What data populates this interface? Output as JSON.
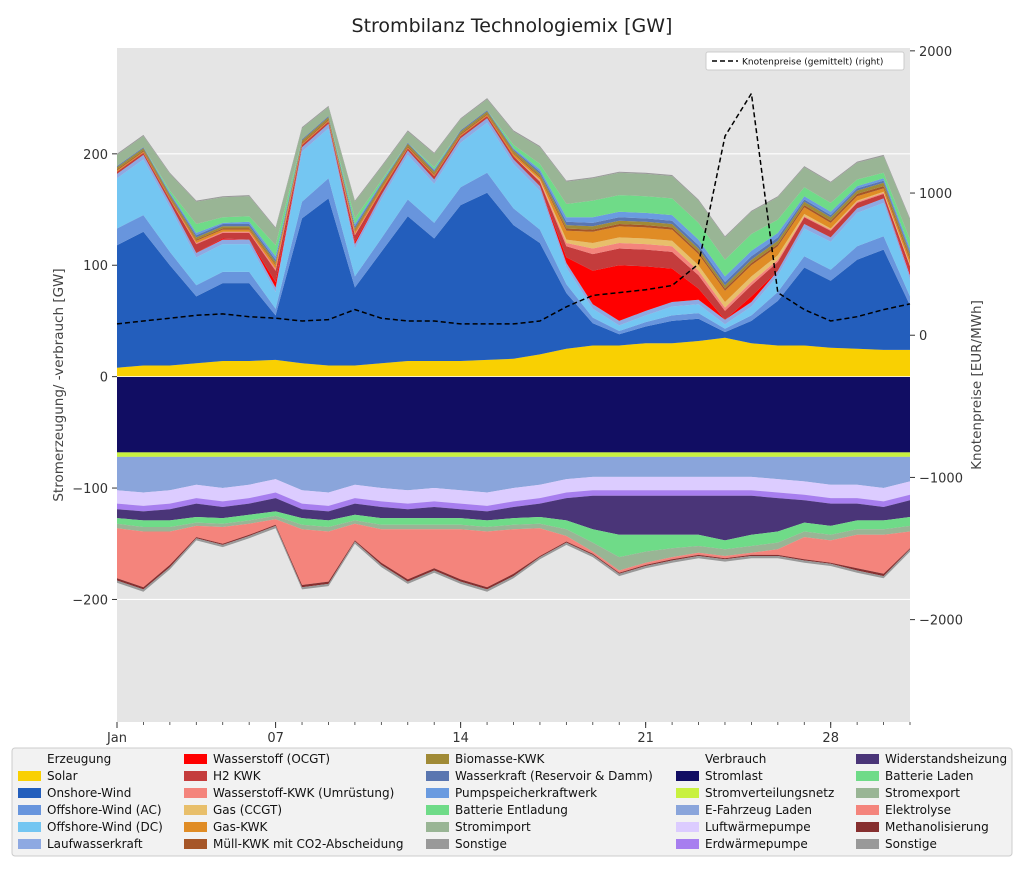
{
  "chart_data": {
    "type": "area",
    "title": "Strombilanz Technologiemix [GW]",
    "ylabel": "Stromerzeugung/ -verbrauch [GW]",
    "y2label": "Knotenpreise [EUR/MWh]",
    "ylim": [
      -310,
      295
    ],
    "y2lim": [
      -2720,
      2020
    ],
    "x_ticks": [
      "Jan",
      "07",
      "14",
      "21",
      "28"
    ],
    "x_range_days": [
      1,
      31
    ],
    "y_ticks": [
      200,
      100,
      0,
      -100,
      -200
    ],
    "y_tick_labels": [
      "200",
      "100",
      "0",
      "−100",
      "−200"
    ],
    "y2_ticks": [
      2000,
      1000,
      0,
      -1000,
      -2000
    ],
    "y2_tick_labels": [
      "2000",
      "1000",
      "0",
      "−1000",
      "−2000"
    ],
    "grid": true,
    "legend_placement": "top-right",
    "line_legend": "Knotenpreise (gemittelt) (right)",
    "x_day": [
      1,
      2,
      3,
      4,
      5,
      6,
      7,
      8,
      9,
      10,
      11,
      12,
      13,
      14,
      15,
      16,
      17,
      18,
      19,
      20,
      21,
      22,
      23,
      24,
      25,
      26,
      27,
      28,
      29,
      30,
      31
    ],
    "generation": [
      {
        "name": "Solar",
        "color": "#f9d002",
        "values": [
          8,
          10,
          10,
          12,
          14,
          14,
          15,
          12,
          10,
          10,
          12,
          14,
          14,
          14,
          15,
          16,
          20,
          25,
          28,
          28,
          30,
          30,
          32,
          35,
          30,
          28,
          28,
          26,
          25,
          24,
          24
        ]
      },
      {
        "name": "Onshore-Wind",
        "color": "#235ebc",
        "values": [
          110,
          120,
          90,
          60,
          70,
          70,
          40,
          130,
          150,
          70,
          100,
          130,
          110,
          140,
          150,
          120,
          100,
          50,
          20,
          10,
          15,
          20,
          20,
          5,
          20,
          40,
          70,
          60,
          80,
          90,
          40
        ]
      },
      {
        "name": "Offshore-Wind (AC)",
        "color": "#6895dd",
        "values": [
          15,
          15,
          12,
          10,
          10,
          10,
          6,
          15,
          18,
          10,
          12,
          15,
          14,
          16,
          18,
          15,
          12,
          8,
          5,
          3,
          4,
          5,
          5,
          3,
          5,
          8,
          10,
          10,
          12,
          12,
          8
        ]
      },
      {
        "name": "Offshore-Wind (DC)",
        "color": "#74c6f2",
        "values": [
          45,
          50,
          40,
          25,
          25,
          25,
          15,
          45,
          45,
          25,
          35,
          40,
          35,
          40,
          45,
          40,
          35,
          15,
          8,
          5,
          6,
          8,
          8,
          4,
          8,
          15,
          25,
          25,
          30,
          30,
          15
        ]
      },
      {
        "name": "Laufwasserkraft",
        "color": "#8ea9e2",
        "values": [
          4,
          4,
          4,
          4,
          4,
          4,
          4,
          4,
          4,
          4,
          4,
          4,
          4,
          4,
          4,
          4,
          4,
          4,
          4,
          4,
          4,
          4,
          4,
          4,
          4,
          4,
          4,
          4,
          4,
          4,
          4
        ]
      },
      {
        "name": "Wasserstoff (OCGT)",
        "color": "#ff0000",
        "values": [
          0,
          0,
          0,
          0,
          1,
          0,
          5,
          0,
          0,
          2,
          0,
          0,
          0,
          0,
          0,
          0,
          0,
          5,
          30,
          50,
          40,
          30,
          10,
          0,
          5,
          0,
          0,
          0,
          0,
          0,
          2
        ]
      },
      {
        "name": "H2 KWK",
        "color": "#c43c3c",
        "values": [
          2,
          2,
          3,
          8,
          5,
          6,
          10,
          2,
          2,
          6,
          4,
          2,
          3,
          2,
          2,
          3,
          4,
          10,
          15,
          15,
          15,
          15,
          12,
          8,
          10,
          8,
          6,
          6,
          5,
          4,
          6
        ]
      },
      {
        "name": "Wasserstoff-KWK (Umrüstung)",
        "color": "#f4847c",
        "values": [
          0,
          0,
          0,
          1,
          1,
          1,
          2,
          0,
          0,
          1,
          0,
          0,
          0,
          0,
          0,
          0,
          1,
          3,
          5,
          5,
          5,
          5,
          4,
          3,
          3,
          2,
          1,
          1,
          1,
          1,
          1
        ]
      },
      {
        "name": "Gas (CCGT)",
        "color": "#e8bf6b",
        "values": [
          0,
          0,
          0,
          0,
          0,
          0,
          0,
          0,
          0,
          0,
          0,
          0,
          0,
          0,
          0,
          0,
          1,
          3,
          5,
          5,
          5,
          5,
          5,
          5,
          5,
          4,
          2,
          1,
          1,
          1,
          1
        ]
      },
      {
        "name": "Gas-KWK",
        "color": "#e08c25",
        "values": [
          1,
          1,
          1,
          2,
          2,
          2,
          3,
          1,
          1,
          2,
          2,
          1,
          1,
          1,
          1,
          2,
          2,
          8,
          10,
          10,
          10,
          10,
          10,
          10,
          10,
          8,
          6,
          5,
          4,
          3,
          4
        ]
      },
      {
        "name": "Müll-KWK mit CO2-Abscheidung",
        "color": "#a65628",
        "values": [
          1,
          1,
          1,
          1,
          1,
          1,
          1,
          1,
          1,
          1,
          1,
          1,
          1,
          1,
          1,
          1,
          1,
          2,
          2,
          2,
          2,
          2,
          2,
          2,
          2,
          2,
          2,
          2,
          2,
          2,
          2
        ]
      },
      {
        "name": "Biomasse-KWK",
        "color": "#a08a36",
        "values": [
          2,
          2,
          2,
          2,
          2,
          2,
          2,
          2,
          2,
          2,
          2,
          2,
          2,
          2,
          2,
          2,
          2,
          3,
          3,
          3,
          3,
          3,
          3,
          3,
          3,
          3,
          3,
          3,
          3,
          3,
          3
        ]
      },
      {
        "name": "Wasserkraft (Reservoir & Damm)",
        "color": "#5a76b0",
        "values": [
          1,
          1,
          1,
          2,
          2,
          2,
          2,
          1,
          1,
          2,
          1,
          1,
          1,
          1,
          1,
          1,
          2,
          3,
          3,
          3,
          3,
          3,
          3,
          3,
          3,
          3,
          2,
          2,
          2,
          2,
          2
        ]
      },
      {
        "name": "Pumpspeicherkraftwerk",
        "color": "#6a9be0",
        "values": [
          0,
          0,
          1,
          2,
          1,
          2,
          3,
          0,
          0,
          2,
          1,
          0,
          1,
          0,
          0,
          1,
          2,
          4,
          5,
          5,
          5,
          5,
          5,
          5,
          5,
          4,
          3,
          3,
          2,
          2,
          3
        ]
      },
      {
        "name": "Batterie Entladung",
        "color": "#6fdb88",
        "values": [
          0,
          0,
          2,
          8,
          5,
          5,
          10,
          0,
          0,
          5,
          2,
          0,
          2,
          0,
          0,
          3,
          5,
          12,
          15,
          15,
          15,
          15,
          15,
          15,
          15,
          12,
          8,
          8,
          6,
          5,
          8
        ]
      },
      {
        "name": "Stromimport",
        "color": "#99b595",
        "values": [
          10,
          10,
          15,
          20,
          18,
          18,
          15,
          10,
          8,
          15,
          12,
          10,
          12,
          10,
          10,
          12,
          15,
          20,
          20,
          20,
          20,
          20,
          20,
          20,
          20,
          20,
          18,
          18,
          15,
          15,
          18
        ]
      },
      {
        "name": "Sonstige",
        "color": "#999999",
        "values": [
          1,
          1,
          1,
          1,
          1,
          1,
          1,
          1,
          1,
          1,
          1,
          1,
          1,
          1,
          1,
          1,
          1,
          1,
          1,
          1,
          1,
          1,
          1,
          1,
          1,
          1,
          1,
          1,
          1,
          1,
          1
        ]
      }
    ],
    "consumption": [
      {
        "name": "Stromlast",
        "color": "#110d63",
        "values": [
          -68,
          -68,
          -68,
          -68,
          -68,
          -68,
          -68,
          -68,
          -68,
          -68,
          -68,
          -68,
          -68,
          -68,
          -68,
          -68,
          -68,
          -68,
          -68,
          -68,
          -68,
          -68,
          -68,
          -68,
          -68,
          -68,
          -68,
          -68,
          -68,
          -68,
          -68
        ]
      },
      {
        "name": "Stromverteilungsnetz",
        "color": "#c8f13f",
        "values": [
          -4,
          -4,
          -4,
          -4,
          -4,
          -4,
          -4,
          -4,
          -4,
          -4,
          -4,
          -4,
          -4,
          -4,
          -4,
          -4,
          -4,
          -4,
          -4,
          -4,
          -4,
          -4,
          -4,
          -4,
          -4,
          -4,
          -4,
          -4,
          -4,
          -4,
          -4
        ]
      },
      {
        "name": "E-Fahrzeug Laden",
        "color": "#8aa5db",
        "values": [
          -30,
          -32,
          -30,
          -25,
          -28,
          -25,
          -20,
          -30,
          -32,
          -25,
          -28,
          -30,
          -28,
          -30,
          -32,
          -28,
          -25,
          -20,
          -18,
          -18,
          -18,
          -18,
          -18,
          -18,
          -18,
          -20,
          -22,
          -25,
          -25,
          -28,
          -22
        ]
      },
      {
        "name": "Luftwärmepumpe",
        "color": "#dcccff",
        "values": [
          -12,
          -12,
          -12,
          -12,
          -12,
          -12,
          -12,
          -12,
          -12,
          -12,
          -12,
          -12,
          -12,
          -12,
          -12,
          -12,
          -12,
          -12,
          -12,
          -12,
          -12,
          -12,
          -12,
          -12,
          -12,
          -12,
          -12,
          -12,
          -12,
          -12,
          -12
        ]
      },
      {
        "name": "Erdwärmepumpe",
        "color": "#a77eef",
        "values": [
          -5,
          -5,
          -5,
          -5,
          -5,
          -5,
          -5,
          -5,
          -5,
          -5,
          -5,
          -5,
          -5,
          -5,
          -5,
          -5,
          -5,
          -5,
          -5,
          -5,
          -5,
          -5,
          -5,
          -5,
          -5,
          -5,
          -5,
          -5,
          -5,
          -5,
          -5
        ]
      },
      {
        "name": "Widerstandsheizung",
        "color": "#4a3578",
        "values": [
          -8,
          -8,
          -10,
          -12,
          -10,
          -10,
          -12,
          -8,
          -8,
          -10,
          -10,
          -8,
          -10,
          -8,
          -8,
          -10,
          -12,
          -20,
          -30,
          -35,
          -35,
          -35,
          -35,
          -40,
          -35,
          -30,
          -20,
          -20,
          -15,
          -12,
          -15
        ]
      },
      {
        "name": "Batterie Laden",
        "color": "#6fdb88",
        "values": [
          -5,
          -6,
          -6,
          -5,
          -5,
          -5,
          -4,
          -6,
          -6,
          -5,
          -6,
          -6,
          -6,
          -6,
          -6,
          -6,
          -6,
          -8,
          -12,
          -20,
          -15,
          -12,
          -10,
          -8,
          -10,
          -10,
          -8,
          -8,
          -8,
          -8,
          -8
        ]
      },
      {
        "name": "Stromexport",
        "color": "#99b595",
        "values": [
          -4,
          -4,
          -4,
          -3,
          -3,
          -3,
          -3,
          -4,
          -4,
          -3,
          -4,
          -4,
          -4,
          -4,
          -4,
          -4,
          -4,
          -6,
          -8,
          -12,
          -10,
          -8,
          -6,
          -6,
          -6,
          -6,
          -5,
          -5,
          -5,
          -5,
          -5
        ]
      },
      {
        "name": "Elektrolyse",
        "color": "#f4847c",
        "values": [
          -45,
          -50,
          -30,
          -10,
          -15,
          -10,
          -5,
          -50,
          -45,
          -15,
          -30,
          -45,
          -35,
          -45,
          -50,
          -40,
          -25,
          -5,
          -2,
          -2,
          -2,
          -2,
          -2,
          -2,
          -2,
          -5,
          -20,
          -20,
          -30,
          -35,
          -15
        ]
      },
      {
        "name": "Methanolisierung",
        "color": "#862f2f",
        "values": [
          -2,
          -2,
          -2,
          -1,
          -1,
          -1,
          -1,
          -2,
          -2,
          -1,
          -2,
          -2,
          -2,
          -2,
          -2,
          -2,
          -1,
          -1,
          -1,
          -1,
          -1,
          -1,
          -1,
          -1,
          -1,
          -1,
          -1,
          -1,
          -2,
          -2,
          -1
        ]
      },
      {
        "name": "Sonstige",
        "color": "#999999",
        "values": [
          -2,
          -2,
          -2,
          -2,
          -2,
          -2,
          -2,
          -2,
          -2,
          -2,
          -2,
          -2,
          -2,
          -2,
          -2,
          -2,
          -2,
          -2,
          -2,
          -2,
          -2,
          -2,
          -2,
          -2,
          -2,
          -2,
          -2,
          -2,
          -2,
          -2,
          -2
        ]
      }
    ],
    "price_series": {
      "name": "Knotenpreise (gemittelt) (right)",
      "color": "#000000",
      "values": [
        80,
        100,
        120,
        140,
        150,
        130,
        120,
        100,
        110,
        180,
        120,
        100,
        100,
        80,
        80,
        80,
        100,
        200,
        280,
        300,
        320,
        350,
        500,
        1400,
        1700,
        300,
        180,
        100,
        130,
        180,
        220
      ]
    }
  },
  "legend": {
    "columns": [
      [
        {
          "type": "header",
          "label": "Erzeugung"
        },
        {
          "label": "Solar",
          "color": "#f9d002"
        },
        {
          "label": "Onshore-Wind",
          "color": "#235ebc"
        },
        {
          "label": "Offshore-Wind (AC)",
          "color": "#6895dd"
        },
        {
          "label": "Offshore-Wind (DC)",
          "color": "#74c6f2"
        },
        {
          "label": "Laufwasserkraft",
          "color": "#8ea9e2"
        }
      ],
      [
        {
          "label": "Wasserstoff (OCGT)",
          "color": "#ff0000"
        },
        {
          "label": "H2 KWK",
          "color": "#c43c3c"
        },
        {
          "label": "Wasserstoff-KWK (Umrüstung)",
          "color": "#f4847c"
        },
        {
          "label": "Gas (CCGT)",
          "color": "#e8bf6b"
        },
        {
          "label": "Gas-KWK",
          "color": "#e08c25"
        },
        {
          "label": "Müll-KWK mit CO2-Abscheidung",
          "color": "#a65628"
        }
      ],
      [
        {
          "label": "Biomasse-KWK",
          "color": "#a08a36"
        },
        {
          "label": "Wasserkraft (Reservoir & Damm)",
          "color": "#5a76b0"
        },
        {
          "label": "Pumpspeicherkraftwerk",
          "color": "#6a9be0"
        },
        {
          "label": "Batterie Entladung",
          "color": "#6fdb88"
        },
        {
          "label": "Stromimport",
          "color": "#99b595"
        },
        {
          "label": "Sonstige",
          "color": "#999999"
        }
      ],
      [
        {
          "type": "header",
          "label": "Verbrauch"
        },
        {
          "label": "Stromlast",
          "color": "#110d63"
        },
        {
          "label": "Stromverteilungsnetz",
          "color": "#c8f13f"
        },
        {
          "label": "E-Fahrzeug Laden",
          "color": "#8aa5db"
        },
        {
          "label": "Luftwärmepumpe",
          "color": "#dcccff"
        },
        {
          "label": "Erdwärmepumpe",
          "color": "#a77eef"
        }
      ],
      [
        {
          "label": "Widerstandsheizung",
          "color": "#4a3578"
        },
        {
          "label": "Batterie Laden",
          "color": "#6fdb88"
        },
        {
          "label": "Stromexport",
          "color": "#99b595"
        },
        {
          "label": "Elektrolyse",
          "color": "#f4847c"
        },
        {
          "label": "Methanolisierung",
          "color": "#862f2f"
        },
        {
          "label": "Sonstige",
          "color": "#999999"
        }
      ]
    ]
  }
}
